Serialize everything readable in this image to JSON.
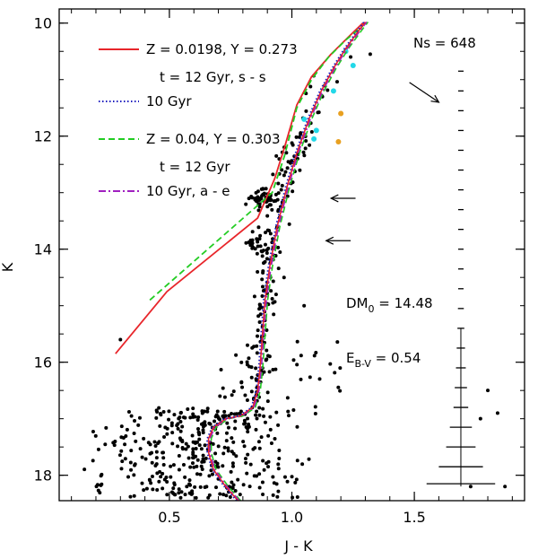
{
  "chart_data": {
    "type": "scatter",
    "title": "",
    "xlabel": "J - K",
    "ylabel": "K",
    "xlim": [
      0.05,
      1.95
    ],
    "ylim": [
      18.45,
      9.75
    ],
    "y_inverted": true,
    "x_ticks": [
      {
        "v": 0.5,
        "label": "0.5"
      },
      {
        "v": 1.0,
        "label": "1.0"
      },
      {
        "v": 1.5,
        "label": "1.5"
      }
    ],
    "y_ticks": [
      {
        "v": 10,
        "label": "10"
      },
      {
        "v": 12,
        "label": "12"
      },
      {
        "v": 14,
        "label": "14"
      },
      {
        "v": 16,
        "label": "16"
      },
      {
        "v": 18,
        "label": "18"
      }
    ],
    "legend": [
      {
        "line1": "Z = 0.0198, Y = 0.273",
        "line2": "t = 12 Gyr, s - s",
        "color": "#e8262b",
        "dash": "solid"
      },
      {
        "line1": "10 Gyr",
        "line2": "",
        "color": "#1f1fbf",
        "dash": "dotted"
      },
      {
        "line1": "Z = 0.04, Y = 0.303",
        "line2": "t = 12 Gyr",
        "color": "#22cc22",
        "dash": "dashed"
      },
      {
        "line1": "10 Gyr, a - e",
        "line2": "",
        "color": "#a020c0",
        "dash": "dashdot"
      }
    ],
    "annotations": {
      "ns": "Ns = 648",
      "dm_main": "DM",
      "dm_sub": "0",
      "dm_val": " = 14.48",
      "eb_main": "E",
      "eb_sub": "B-V",
      "eb_val": " = 0.54"
    },
    "series": [
      {
        "name": "Z = 0.0198, t = 12 Gyr",
        "color": "#e8262b",
        "style": "solid",
        "x": [
          0.28,
          0.49,
          0.86,
          0.93,
          0.97,
          1.02,
          1.08,
          1.16,
          1.23,
          1.29
        ],
        "y": [
          15.85,
          14.75,
          13.45,
          12.75,
          12.2,
          11.45,
          10.95,
          10.55,
          10.25,
          10.0
        ]
      },
      {
        "name": "Z = 0.04, t = 12 Gyr",
        "color": "#22cc22",
        "style": "dashed",
        "x": [
          0.42,
          0.92,
          0.97,
          1.02,
          1.08,
          1.15,
          1.22,
          1.29
        ],
        "y": [
          14.9,
          13.0,
          12.35,
          11.5,
          11.0,
          10.6,
          10.3,
          10.05
        ]
      },
      {
        "name": "RGB/MS isochrone (all models)",
        "color": "#e8262b",
        "style": "solid",
        "x": [
          0.78,
          0.73,
          0.68,
          0.66,
          0.66,
          0.68,
          0.73,
          0.79,
          0.84,
          0.86,
          0.87,
          0.88,
          0.89,
          0.91,
          0.94,
          0.98,
          1.02,
          1.07,
          1.12,
          1.17,
          1.22,
          1.27,
          1.3
        ],
        "y": [
          18.45,
          18.2,
          17.9,
          17.6,
          17.35,
          17.15,
          17.0,
          16.95,
          16.8,
          16.5,
          16.1,
          15.5,
          14.9,
          14.3,
          13.6,
          12.9,
          12.3,
          11.7,
          11.2,
          10.8,
          10.45,
          10.15,
          9.98
        ]
      },
      {
        "name": "Ns markers",
        "color": "#000",
        "style": "ticks",
        "x": 1.69,
        "y": [
          10.85,
          11.2,
          11.55,
          11.9,
          12.25,
          12.6,
          12.95,
          13.3,
          13.65,
          14.0,
          14.35,
          14.7,
          15.05,
          15.4,
          15.75,
          16.1,
          16.45,
          16.8,
          17.15,
          17.5,
          17.85,
          18.15
        ],
        "half_width": [
          0.01,
          0.01,
          0.01,
          0.01,
          0.01,
          0.01,
          0.01,
          0.01,
          0.01,
          0.01,
          0.01,
          0.01,
          0.012,
          0.014,
          0.017,
          0.02,
          0.025,
          0.03,
          0.045,
          0.06,
          0.09,
          0.14
        ]
      },
      {
        "name": "Cyan stars",
        "color": "#22d8e8",
        "style": "points",
        "x": [
          1.22,
          1.25,
          1.17,
          1.05,
          1.09,
          1.1
        ],
        "y": [
          10.5,
          10.75,
          11.2,
          11.7,
          12.05,
          11.9
        ]
      },
      {
        "name": "Orange stars",
        "color": "#e8a020",
        "style": "points",
        "x": [
          1.2,
          1.19
        ],
        "y": [
          11.6,
          12.1
        ]
      },
      {
        "name": "Cluster stars (sample)",
        "color": "#000",
        "style": "points",
        "seed": 648
      }
    ],
    "arrows": [
      {
        "x1": 1.48,
        "y1": 11.05,
        "x2": 1.6,
        "y2": 11.4
      },
      {
        "x1": 1.26,
        "y1": 13.1,
        "x2": 1.16,
        "y2": 13.1
      },
      {
        "x1": 1.24,
        "y1": 13.85,
        "x2": 1.14,
        "y2": 13.85
      }
    ]
  }
}
